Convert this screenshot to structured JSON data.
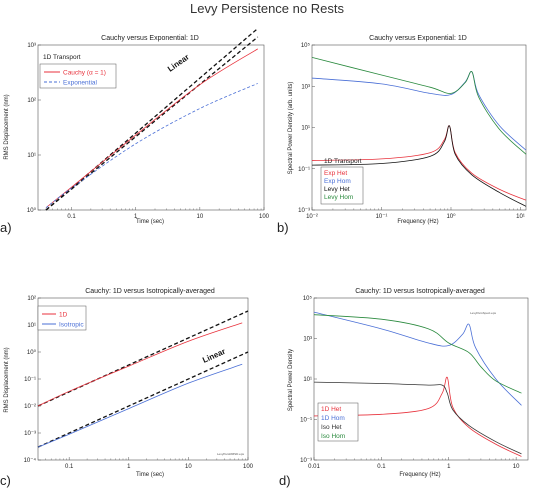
{
  "figure": {
    "title": "Levy Persistence no Rests",
    "palette": {
      "red": "#e8323c",
      "blue": "#4a6fd6",
      "black": "#111111",
      "green": "#2a8a3e",
      "axis": "#555555"
    }
  },
  "chart_data": [
    {
      "id": "a",
      "panel_label": "a)",
      "type": "line",
      "title": "Cauchy versus Exponential: 1D",
      "xlabel": "Time (sec)",
      "ylabel": "RMS Displacement (nm)",
      "xscale": "log",
      "yscale": "log",
      "xlim": [
        0.03,
        100
      ],
      "ylim": [
        1,
        1000
      ],
      "xticks": [
        0.1,
        1,
        10,
        100
      ],
      "xtick_labels": [
        "0.1",
        "1",
        "10",
        "100"
      ],
      "yticks": [
        1,
        10,
        100,
        1000
      ],
      "ytick_labels": [
        "10⁰",
        "10¹",
        "10²",
        "10³"
      ],
      "legend_title": "1D Transport",
      "legend_position": "top-left",
      "series": [
        {
          "name": "Cauchy (α = 1)",
          "color": "#e8323c",
          "style": "solid",
          "x": [
            0.04,
            0.1,
            1,
            10,
            80
          ],
          "y": [
            1.1,
            2.6,
            23,
            190,
            850
          ]
        },
        {
          "name": "Exponential",
          "color": "#4a6fd6",
          "style": "dashed",
          "x": [
            0.04,
            0.1,
            1,
            10,
            80
          ],
          "y": [
            1.1,
            2.5,
            16,
            70,
            200
          ]
        }
      ],
      "reference_lines": [
        {
          "x": [
            0.04,
            80
          ],
          "y": [
            1.0,
            2000
          ],
          "color": "#111111"
        },
        {
          "x": [
            0.04,
            80
          ],
          "y": [
            1.0,
            1400
          ],
          "color": "#111111"
        }
      ],
      "annotations": [
        {
          "text": "Linear",
          "x": 12,
          "y": 520
        }
      ]
    },
    {
      "id": "b",
      "panel_label": "b)",
      "type": "line",
      "title": "Cauchy versus Exponential: 1D",
      "xlabel": "Frequency (Hz)",
      "ylabel": "Spectral Power Density (arb. units)",
      "xscale": "log",
      "yscale": "log",
      "xlim": [
        0.01,
        12
      ],
      "ylim": [
        0.001,
        100000
      ],
      "xticks": [
        0.01,
        0.1,
        1,
        10
      ],
      "xtick_labels": [
        "10⁻²",
        "10⁻¹",
        "10⁰",
        "10¹"
      ],
      "yticks": [
        0.001,
        0.1,
        10,
        1000,
        100000
      ],
      "ytick_labels": [
        "10⁻³",
        "10⁻¹",
        "10¹",
        "10³",
        "10⁵"
      ],
      "legend_title": "1D Transport",
      "legend_position": "bottom-left",
      "series": [
        {
          "name": "Exp Het",
          "color": "#e8323c",
          "x": [
            0.01,
            0.1,
            0.5,
            0.8,
            0.95,
            1.15,
            2,
            5,
            12
          ],
          "y": [
            0.25,
            0.3,
            0.6,
            2.5,
            12,
            0.6,
            0.06,
            0.01,
            0.003
          ]
        },
        {
          "name": "Exp Hom",
          "color": "#4a6fd6",
          "x": [
            0.01,
            0.1,
            0.5,
            1,
            1.6,
            2,
            2.5,
            5,
            12
          ],
          "y": [
            2500,
            1300,
            450,
            400,
            1600,
            5000,
            400,
            12,
            0.8
          ]
        },
        {
          "name": "Levy Het",
          "color": "#111111",
          "x": [
            0.01,
            0.1,
            0.5,
            0.8,
            0.95,
            1.15,
            2,
            5,
            12
          ],
          "y": [
            0.15,
            0.18,
            0.4,
            2,
            12,
            0.5,
            0.05,
            0.007,
            0.0015
          ]
        },
        {
          "name": "Levy Hom",
          "color": "#2a8a3e",
          "x": [
            0.01,
            0.1,
            0.5,
            1,
            1.6,
            2,
            2.5,
            5,
            12
          ],
          "y": [
            25000,
            3500,
            900,
            450,
            1500,
            5000,
            300,
            8,
            0.5
          ]
        }
      ]
    },
    {
      "id": "c",
      "panel_label": "c)",
      "type": "line",
      "title": "Cauchy: 1D versus Isotropically-averaged",
      "xlabel": "Time (sec)",
      "ylabel": "RMS Displacement (nm)",
      "xscale": "log",
      "yscale": "log",
      "xlim": [
        0.03,
        100
      ],
      "ylim": [
        0.0001,
        100
      ],
      "xticks": [
        0.1,
        1,
        10,
        100
      ],
      "xtick_labels": [
        "0.1",
        "1",
        "10",
        "100"
      ],
      "yticks": [
        0.0001,
        0.001,
        0.01,
        0.1,
        1,
        10,
        100
      ],
      "ytick_labels": [
        "10⁻⁴",
        "10⁻³",
        "10⁻²",
        "10⁻¹",
        "10⁰",
        "10¹",
        "10²"
      ],
      "legend_position": "top-left",
      "series": [
        {
          "name": "1D",
          "color": "#e8323c",
          "style": "solid",
          "x": [
            0.03,
            0.1,
            1,
            10,
            80
          ],
          "y": [
            0.01,
            0.035,
            0.3,
            2.5,
            12
          ]
        },
        {
          "name": "Isotropic",
          "color": "#4a6fd6",
          "style": "solid",
          "x": [
            0.03,
            0.1,
            1,
            10,
            80
          ],
          "y": [
            0.0003,
            0.0009,
            0.008,
            0.07,
            0.35
          ]
        }
      ],
      "reference_lines": [
        {
          "x": [
            0.03,
            100
          ],
          "y": [
            0.01,
            33
          ],
          "color": "#111111"
        },
        {
          "x": [
            0.03,
            100
          ],
          "y": [
            0.0003,
            1.0
          ],
          "color": "#111111"
        }
      ],
      "annotations": [
        {
          "text": "Linear",
          "x": 18,
          "y": 0.6
        }
      ],
      "corner_note": "LevyPersRMSD.eps"
    },
    {
      "id": "d",
      "panel_label": "d)",
      "type": "line",
      "title": "Cauchy: 1D versus Isotropically-averaged",
      "xlabel": "Frequency (Hz)",
      "ylabel": "Spectral Power Density",
      "xscale": "log",
      "yscale": "log",
      "xlim": [
        0.01,
        15
      ],
      "ylim": [
        0.001,
        100000
      ],
      "xticks": [
        0.01,
        0.1,
        1,
        10
      ],
      "xtick_labels": [
        "0.01",
        "0.1",
        "1",
        "10"
      ],
      "yticks": [
        0.001,
        0.1,
        10,
        1000,
        100000
      ],
      "ytick_labels": [
        "10⁻³",
        "10⁻¹",
        "10¹",
        "10³",
        "10⁵"
      ],
      "legend_position": "bottom-left",
      "series": [
        {
          "name": "1D Het",
          "color": "#e8323c",
          "x": [
            0.01,
            0.1,
            0.5,
            0.8,
            0.95,
            1.15,
            2,
            5,
            12
          ],
          "y": [
            0.15,
            0.18,
            0.35,
            2,
            12,
            0.4,
            0.04,
            0.006,
            0.0015
          ]
        },
        {
          "name": "1D Hom",
          "color": "#4a6fd6",
          "x": [
            0.01,
            0.1,
            0.5,
            1,
            1.6,
            2,
            2.5,
            5,
            12
          ],
          "y": [
            20000,
            3000,
            600,
            450,
            1600,
            5000,
            350,
            10,
            0.5
          ]
        },
        {
          "name": "Iso Het",
          "color": "#333333",
          "x": [
            0.01,
            0.1,
            0.5,
            0.8,
            0.95,
            1.15,
            2,
            5,
            12
          ],
          "y": [
            7,
            6,
            5,
            5,
            2,
            0.3,
            0.05,
            0.008,
            0.002
          ]
        },
        {
          "name": "Iso Hom",
          "color": "#2a8a3e",
          "x": [
            0.01,
            0.1,
            0.5,
            1,
            2,
            3,
            5,
            12
          ],
          "y": [
            15000,
            9000,
            3000,
            600,
            200,
            40,
            8,
            2
          ]
        }
      ],
      "corner_note": "LevyPersSpect.eps"
    }
  ]
}
